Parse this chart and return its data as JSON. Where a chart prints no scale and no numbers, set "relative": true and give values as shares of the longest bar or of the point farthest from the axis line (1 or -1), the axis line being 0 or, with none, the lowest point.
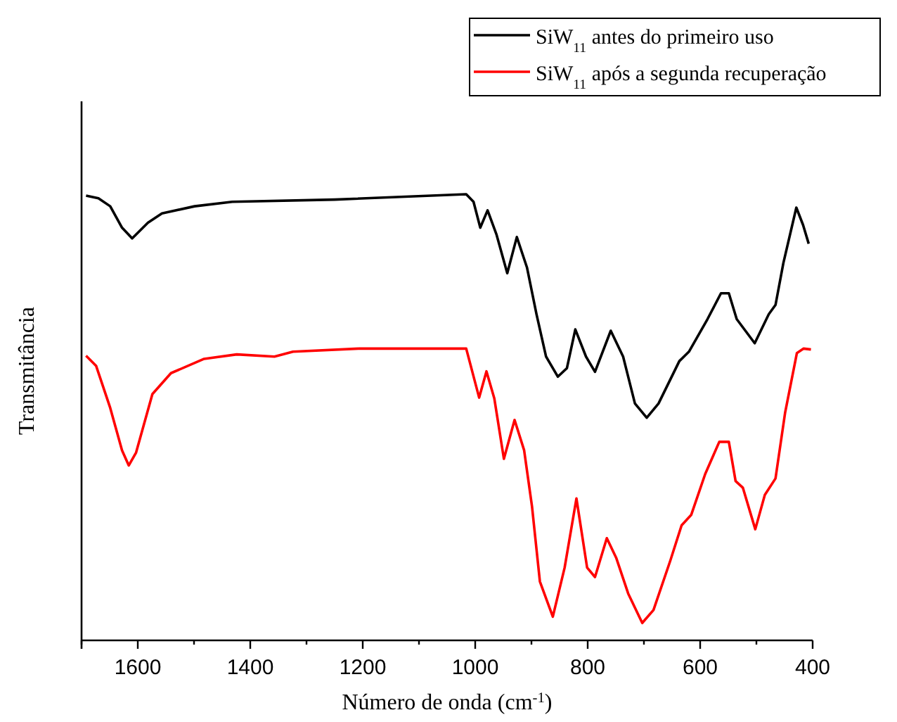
{
  "chart_data": {
    "type": "line",
    "relative": true,
    "xlabel": "Número de onda (cm$^{-1}$)",
    "ylabel": "Transmitância",
    "xlim": [
      1700,
      400
    ],
    "xticks": [
      {
        "value": 1700,
        "label": null
      },
      1600,
      {
        "value": 1500,
        "label": null
      },
      1400,
      {
        "value": 1300,
        "label": null
      },
      1200,
      {
        "value": 1100,
        "label": null
      },
      1000,
      {
        "value": 900,
        "label": null
      },
      800,
      {
        "value": 700,
        "label": null
      },
      600,
      {
        "value": 500,
        "label": null
      },
      400
    ],
    "tick_labels": "x",
    "legend": "top right",
    "grid": false,
    "marker": "none",
    "line_style": "solid",
    "series": [
      {
        "name": "SiW$_{11}$ antes do primeiro uso",
        "color": "#000000",
        "x": [
          1692,
          1670,
          1649,
          1628,
          1610,
          1582,
          1557,
          1499,
          1432,
          1250,
          1016,
          1003,
          991,
          978,
          962,
          943,
          926,
          908,
          891,
          874,
          853,
          837,
          822,
          803,
          787,
          759,
          737,
          716,
          695,
          674,
          637,
          620,
          587,
          563,
          549,
          535,
          503,
          478,
          466,
          452,
          429,
          417,
          407
        ],
        "values": [
          0.997,
          0.991,
          0.973,
          0.925,
          0.901,
          0.936,
          0.957,
          0.973,
          0.983,
          0.988,
          1,
          0.983,
          0.925,
          0.964,
          0.909,
          0.823,
          0.904,
          0.836,
          0.731,
          0.636,
          0.591,
          0.61,
          0.697,
          0.636,
          0.602,
          0.694,
          0.636,
          0.531,
          0.499,
          0.531,
          0.626,
          0.647,
          0.72,
          0.778,
          0.778,
          0.72,
          0.666,
          0.731,
          0.752,
          0.846,
          0.97,
          0.931,
          0.889
        ]
      },
      {
        "name": "SiW$_{11}$ após a segunda recuperação",
        "color": "#ff0000",
        "x": [
          1692,
          1674,
          1649,
          1628,
          1616,
          1603,
          1574,
          1541,
          1482,
          1424,
          1357,
          1324,
          1207,
          1016,
          993,
          980,
          966,
          949,
          930,
          913,
          899,
          885,
          862,
          841,
          820,
          801,
          787,
          766,
          749,
          728,
          703,
          683,
          653,
          633,
          616,
          591,
          566,
          549,
          537,
          524,
          502,
          485,
          466,
          449,
          428,
          416,
          403
        ],
        "values": [
          0.638,
          0.615,
          0.521,
          0.426,
          0.392,
          0.421,
          0.552,
          0.599,
          0.631,
          0.641,
          0.636,
          0.647,
          0.654,
          0.654,
          0.544,
          0.603,
          0.542,
          0.407,
          0.494,
          0.426,
          0.3,
          0.132,
          0.053,
          0.163,
          0.318,
          0.163,
          0.142,
          0.229,
          0.184,
          0.105,
          0.039,
          0.068,
          0.179,
          0.258,
          0.281,
          0.373,
          0.445,
          0.445,
          0.357,
          0.342,
          0.249,
          0.326,
          0.363,
          0.51,
          0.644,
          0.654,
          0.652
        ]
      }
    ]
  }
}
